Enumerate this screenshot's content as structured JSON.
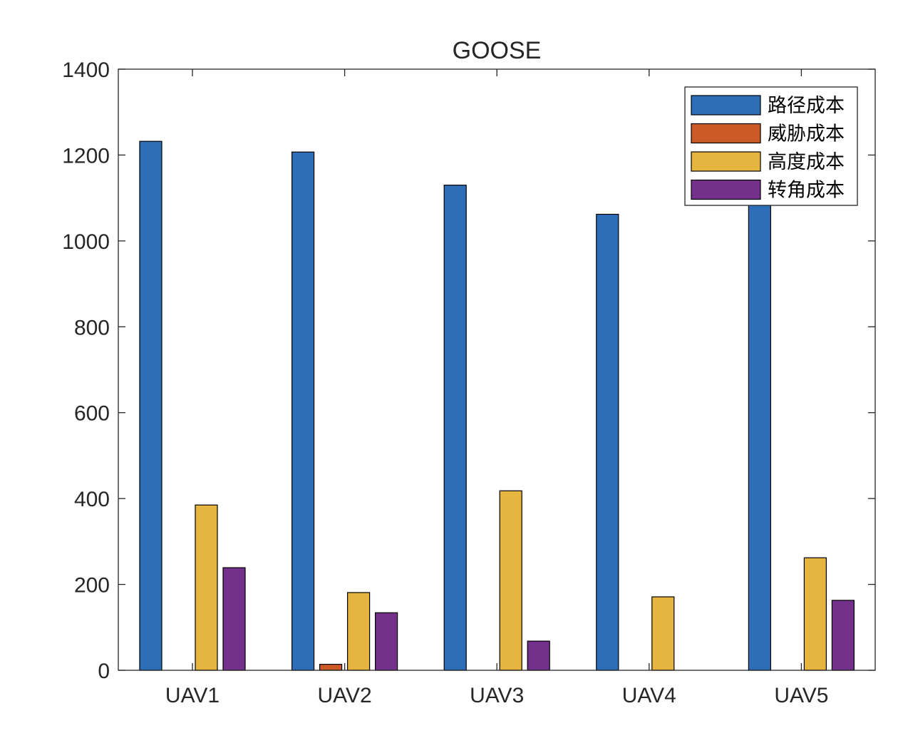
{
  "chart_data": {
    "type": "bar",
    "title": "GOOSE",
    "xlabel": "",
    "ylabel": "",
    "categories": [
      "UAV1",
      "UAV2",
      "UAV3",
      "UAV4",
      "UAV5"
    ],
    "ylim": [
      0,
      1400
    ],
    "yticks": [
      0,
      200,
      400,
      600,
      800,
      1000,
      1200,
      1400
    ],
    "legend_position": "top-right",
    "series": [
      {
        "name": "路径成本",
        "color": "#2E6DB8",
        "values": [
          1232,
          1207,
          1130,
          1062,
          1090
        ]
      },
      {
        "name": "威胁成本",
        "color": "#CC5A26",
        "values": [
          0,
          14,
          0,
          0,
          0
        ]
      },
      {
        "name": "高度成本",
        "color": "#E5B53F",
        "values": [
          385,
          181,
          418,
          171,
          262
        ]
      },
      {
        "name": "转角成本",
        "color": "#74318C",
        "values": [
          239,
          134,
          68,
          0,
          163
        ]
      }
    ]
  }
}
